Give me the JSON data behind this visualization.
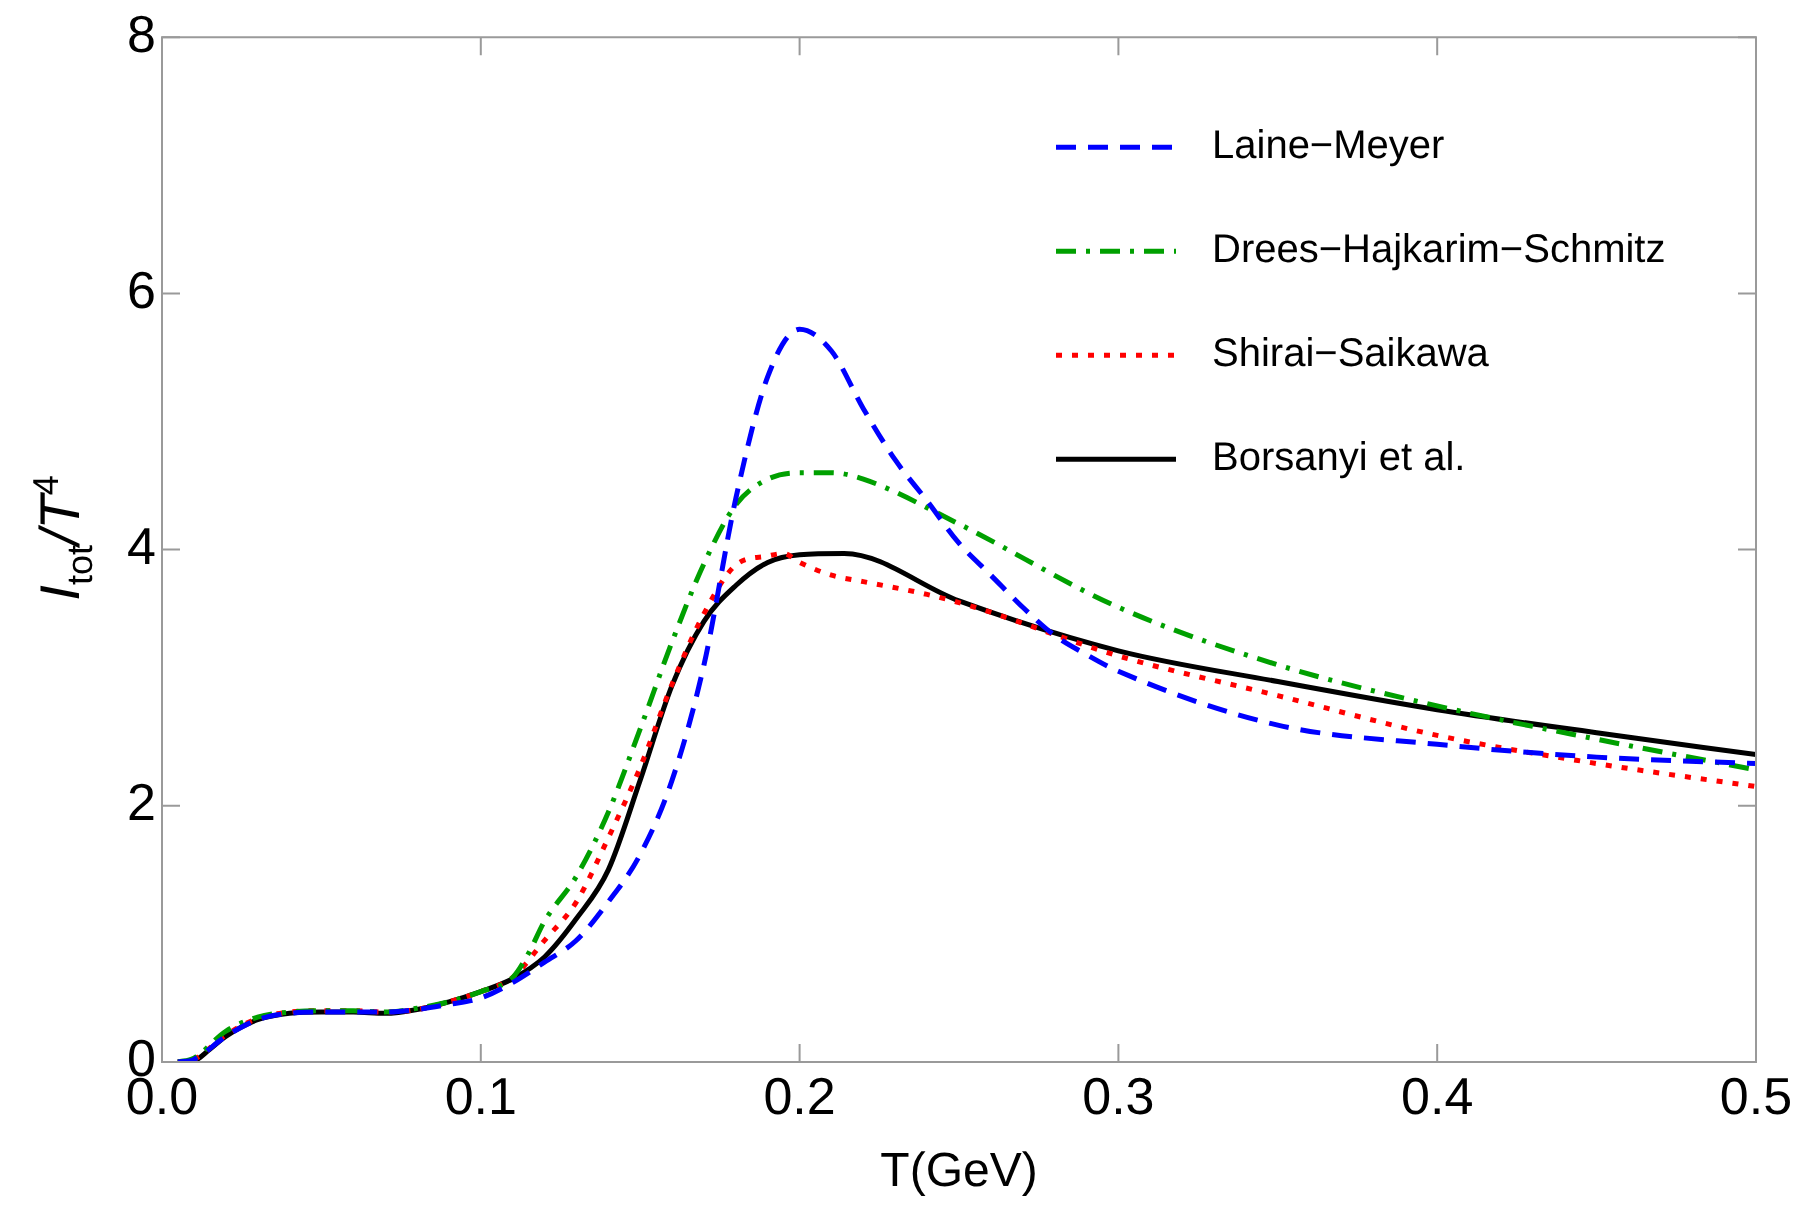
{
  "chart_data": {
    "type": "line",
    "xlabel": "T(GeV)",
    "ylabel": "I$_{tot}$/T$^{4}$",
    "xlim": [
      0,
      0.5
    ],
    "xticks": [
      {
        "value": 0,
        "label": "0.0"
      },
      0.1,
      0.2,
      0.3,
      0.4,
      0.5
    ],
    "ylim": [
      0,
      8
    ],
    "yticks": [
      0,
      2,
      4,
      6,
      8
    ],
    "grid": false,
    "legend": "top right",
    "marker": "none",
    "series": [
      {
        "name": "Laine−Meyer",
        "color": "#0000ff",
        "line_style": "dashed",
        "x": [
          0.005,
          0.01,
          0.02,
          0.03,
          0.04,
          0.05,
          0.06,
          0.07,
          0.08,
          0.09,
          0.1,
          0.11,
          0.12,
          0.13,
          0.14,
          0.15,
          0.16,
          0.17,
          0.18,
          0.19,
          0.2,
          0.21,
          0.22,
          0.23,
          0.24,
          0.25,
          0.26,
          0.27,
          0.28,
          0.29,
          0.3,
          0.35,
          0.4,
          0.45,
          0.5
        ],
        "values": [
          0,
          0.02,
          0.2,
          0.33,
          0.38,
          0.39,
          0.39,
          0.39,
          0.41,
          0.45,
          0.5,
          0.62,
          0.78,
          0.95,
          1.25,
          1.62,
          2.2,
          3.1,
          4.4,
          5.35,
          5.72,
          5.55,
          5.1,
          4.7,
          4.38,
          4.05,
          3.8,
          3.55,
          3.33,
          3.18,
          3.05,
          2.63,
          2.48,
          2.38,
          2.33
        ]
      },
      {
        "name": "Drees−Hajkarim−Schmitz",
        "color": "#00a000",
        "line_style": "dashdot",
        "x": [
          0.005,
          0.01,
          0.02,
          0.03,
          0.04,
          0.05,
          0.06,
          0.07,
          0.08,
          0.09,
          0.1,
          0.11,
          0.115,
          0.12,
          0.13,
          0.14,
          0.15,
          0.16,
          0.17,
          0.18,
          0.19,
          0.2,
          0.21,
          0.22,
          0.25,
          0.3,
          0.35,
          0.4,
          0.45,
          0.5
        ],
        "values": [
          0,
          0.03,
          0.24,
          0.35,
          0.39,
          0.4,
          0.4,
          0.39,
          0.42,
          0.47,
          0.55,
          0.66,
          0.85,
          1.1,
          1.45,
          1.95,
          2.6,
          3.28,
          3.89,
          4.35,
          4.55,
          4.6,
          4.6,
          4.55,
          4.2,
          3.55,
          3.1,
          2.78,
          2.52,
          2.28
        ]
      },
      {
        "name": "Shirai−Saikawa",
        "color": "#ff0000",
        "line_style": "dotted",
        "x": [
          0.005,
          0.01,
          0.02,
          0.03,
          0.04,
          0.05,
          0.06,
          0.07,
          0.08,
          0.09,
          0.1,
          0.11,
          0.12,
          0.13,
          0.14,
          0.15,
          0.16,
          0.17,
          0.18,
          0.19,
          0.195,
          0.2,
          0.21,
          0.22,
          0.24,
          0.255,
          0.3,
          0.35,
          0.4,
          0.45,
          0.5
        ],
        "values": [
          0,
          0.02,
          0.21,
          0.34,
          0.39,
          0.4,
          0.4,
          0.39,
          0.41,
          0.47,
          0.55,
          0.66,
          0.95,
          1.25,
          1.75,
          2.3,
          2.95,
          3.5,
          3.88,
          3.95,
          3.97,
          3.9,
          3.8,
          3.75,
          3.65,
          3.55,
          3.17,
          2.86,
          2.55,
          2.33,
          2.15
        ]
      },
      {
        "name": "Borsanyi et al.",
        "color": "#000000",
        "line_style": "solid",
        "x": [
          0.005,
          0.01,
          0.015,
          0.02,
          0.03,
          0.04,
          0.05,
          0.06,
          0.07,
          0.08,
          0.09,
          0.1,
          0.11,
          0.12,
          0.13,
          0.14,
          0.15,
          0.16,
          0.17,
          0.18,
          0.19,
          0.2,
          0.214,
          0.25,
          0.3,
          0.35,
          0.4,
          0.45,
          0.5
        ],
        "values": [
          0,
          0.01,
          0.1,
          0.2,
          0.33,
          0.38,
          0.39,
          0.39,
          0.38,
          0.41,
          0.47,
          0.55,
          0.65,
          0.82,
          1.12,
          1.5,
          2.2,
          2.94,
          3.44,
          3.72,
          3.9,
          3.96,
          3.97,
          3.6,
          3.21,
          2.97,
          2.75,
          2.57,
          2.4
        ]
      }
    ]
  }
}
